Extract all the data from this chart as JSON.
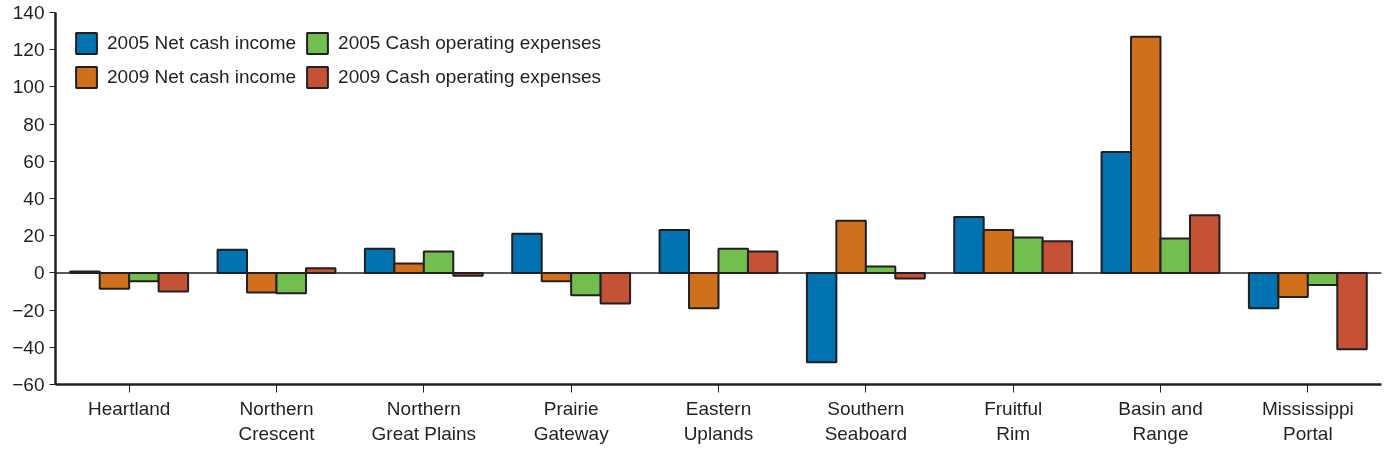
{
  "chart_data": {
    "type": "bar",
    "categories": [
      "Heartland",
      "Northern\nCrescent",
      "Northern\nGreat Plains",
      "Prairie\nGateway",
      "Eastern\nUplands",
      "Southern\nSeaboard",
      "Fruitful\nRim",
      "Basin and\nRange",
      "Mississippi\nPortal"
    ],
    "series": [
      {
        "name": "2005 Net cash income",
        "color": "#0073b0",
        "values": [
          0.7,
          12.5,
          13,
          21,
          23,
          -48,
          30,
          65,
          -19
        ]
      },
      {
        "name": "2009 Net cash income",
        "color": "#d0701c",
        "values": [
          -8.5,
          -10.5,
          5,
          -4.5,
          -19,
          28,
          23,
          127,
          -13
        ]
      },
      {
        "name": "2005 Cash operating expenses",
        "color": "#72bf4f",
        "values": [
          -4.5,
          -11,
          11.5,
          -12,
          13,
          3.5,
          19,
          18.5,
          -6.5
        ]
      },
      {
        "name": "2009 Cash operating expenses",
        "color": "#c55234",
        "values": [
          -10,
          2.5,
          -1.5,
          -16.5,
          11.5,
          -3,
          17,
          31,
          -41
        ]
      }
    ],
    "ylim": [
      -60,
      140
    ],
    "yticks": [
      -60,
      -40,
      -20,
      0,
      20,
      40,
      60,
      80,
      100,
      120,
      140
    ],
    "ref_lines": [
      {
        "axis": "y",
        "value": 0,
        "color": "#231f20"
      }
    ],
    "legend": "top left",
    "grid": false
  }
}
